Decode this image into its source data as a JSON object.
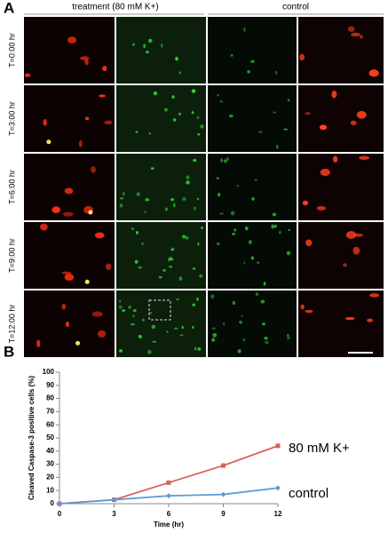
{
  "panel_a": {
    "label": "A",
    "column_headers": [
      "treatment (80 mM K+)",
      "control"
    ],
    "row_labels": [
      "T=0:00 hr",
      "T=3:00 hr",
      "T=6:00 hr",
      "T=9:00 hr",
      "T=12:00 hr"
    ]
  },
  "panel_b_label": "B",
  "chart_data": {
    "type": "line",
    "x_label": "Time (hr)",
    "y_label": "Cleaved Caspase-3 positive cells (%)",
    "x": [
      0,
      3,
      6,
      9,
      12
    ],
    "series": [
      {
        "name": "80 mM K+",
        "color": "#d9605a",
        "marker": "square",
        "values": [
          0,
          3,
          16,
          29,
          44
        ]
      },
      {
        "name": "control",
        "color": "#5b9bd5",
        "marker": "diamond",
        "values": [
          0,
          3,
          6,
          7,
          12
        ]
      }
    ],
    "xlim": [
      0,
      12
    ],
    "xticks": [
      0,
      3,
      6,
      9,
      12
    ],
    "ylim": [
      0,
      100
    ],
    "yticks": [
      0,
      10,
      20,
      30,
      40,
      50,
      60,
      70,
      80,
      90,
      100
    ],
    "grid": false
  }
}
